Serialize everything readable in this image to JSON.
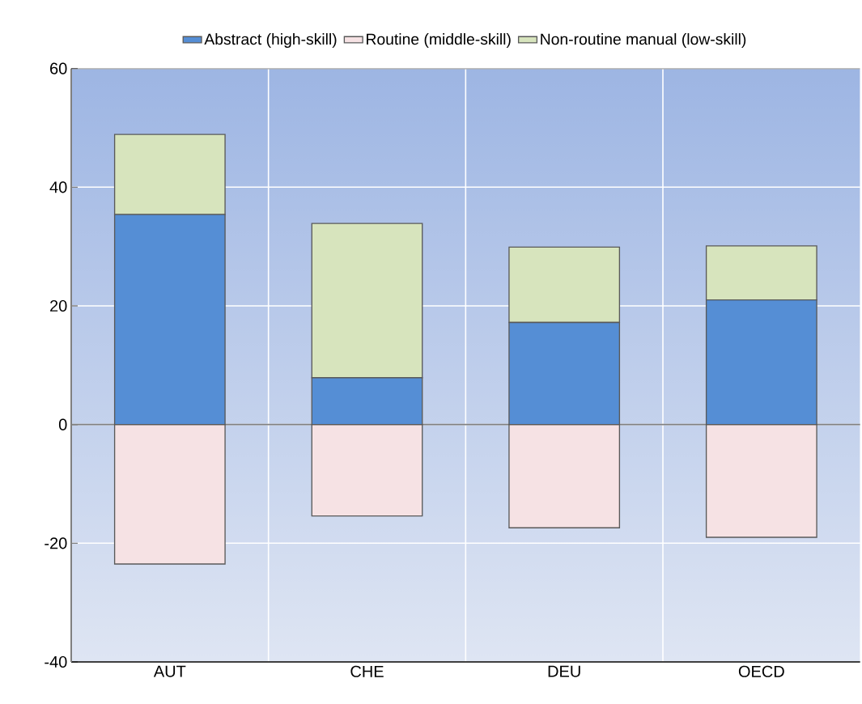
{
  "chart_data": {
    "type": "bar",
    "stacked": true,
    "categories": [
      "AUT",
      "CHE",
      "DEU",
      "OECD"
    ],
    "series": [
      {
        "name": "Abstract (high-skill)",
        "color": "#558ed5",
        "values": [
          35.4,
          7.9,
          17.2,
          21.0
        ]
      },
      {
        "name": "Routine (middle-skill)",
        "color": "#f6e2e4",
        "values": [
          -23.5,
          -15.4,
          -17.4,
          -19.0
        ]
      },
      {
        "name": "Non-routine manual (low-skill)",
        "color": "#d7e4bd",
        "values": [
          13.5,
          26.0,
          12.7,
          9.1
        ]
      }
    ],
    "ylim": [
      -40,
      60
    ],
    "yticks": [
      -40,
      -20,
      0,
      20,
      40,
      60
    ],
    "grid": true,
    "legend": "top"
  }
}
